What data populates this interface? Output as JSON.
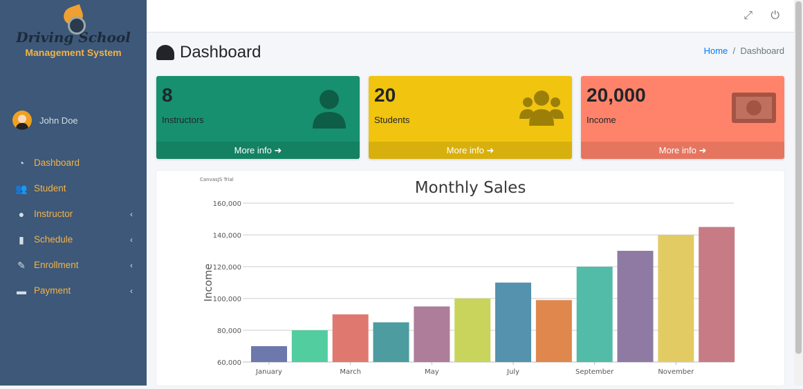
{
  "sidebar": {
    "logo": {
      "line1": "Driving School",
      "line2": "Management System"
    },
    "user": "John Doe",
    "items": [
      {
        "label": "Dashboard",
        "icon": "tachometer-icon",
        "sub": false
      },
      {
        "label": "Student",
        "icon": "users-icon",
        "sub": false
      },
      {
        "label": "Instructor",
        "icon": "user-icon",
        "sub": true
      },
      {
        "label": "Schedule",
        "icon": "book-icon",
        "sub": true
      },
      {
        "label": "Enrollment",
        "icon": "edit-icon",
        "sub": true
      },
      {
        "label": "Payment",
        "icon": "money-icon",
        "sub": true
      }
    ]
  },
  "header": {
    "title": "Dashboard",
    "breadcrumb": {
      "home": "Home",
      "current": "Dashboard"
    }
  },
  "boxes": [
    {
      "value": "8",
      "label": "Instructors",
      "more": "More info ➜",
      "color": "#17906f",
      "icon": "user-icon"
    },
    {
      "value": "20",
      "label": "Students",
      "more": "More info ➜",
      "color": "#f1c40f",
      "icon": "users-icon"
    },
    {
      "value": "20,000",
      "label": "Income",
      "more": "More info ➜",
      "color": "#ff836a",
      "icon": "money-bill-icon"
    }
  ],
  "chart_data": {
    "type": "bar",
    "title": "Monthly Sales",
    "watermark": "CanvasJS Trial",
    "ylabel": "Income",
    "xlabel": "",
    "ylim": [
      60000,
      160000
    ],
    "yticks": [
      "60,000",
      "80,000",
      "100,000",
      "120,000",
      "140,000",
      "160,000"
    ],
    "x_tick_labels": [
      "January",
      "March",
      "May",
      "July",
      "September",
      "November"
    ],
    "values": [
      70000,
      80000,
      90000,
      85000,
      95000,
      100000,
      110000,
      99000,
      120000,
      130000,
      140000,
      145000
    ],
    "colors": [
      "#6d78ad",
      "#51cda0",
      "#df7970",
      "#4c9ca0",
      "#ae7d99",
      "#c9d45c",
      "#5592ad",
      "#df874d",
      "#52bca8",
      "#8e7aa3",
      "#e3cb64",
      "#c77b85"
    ],
    "grid": true
  }
}
